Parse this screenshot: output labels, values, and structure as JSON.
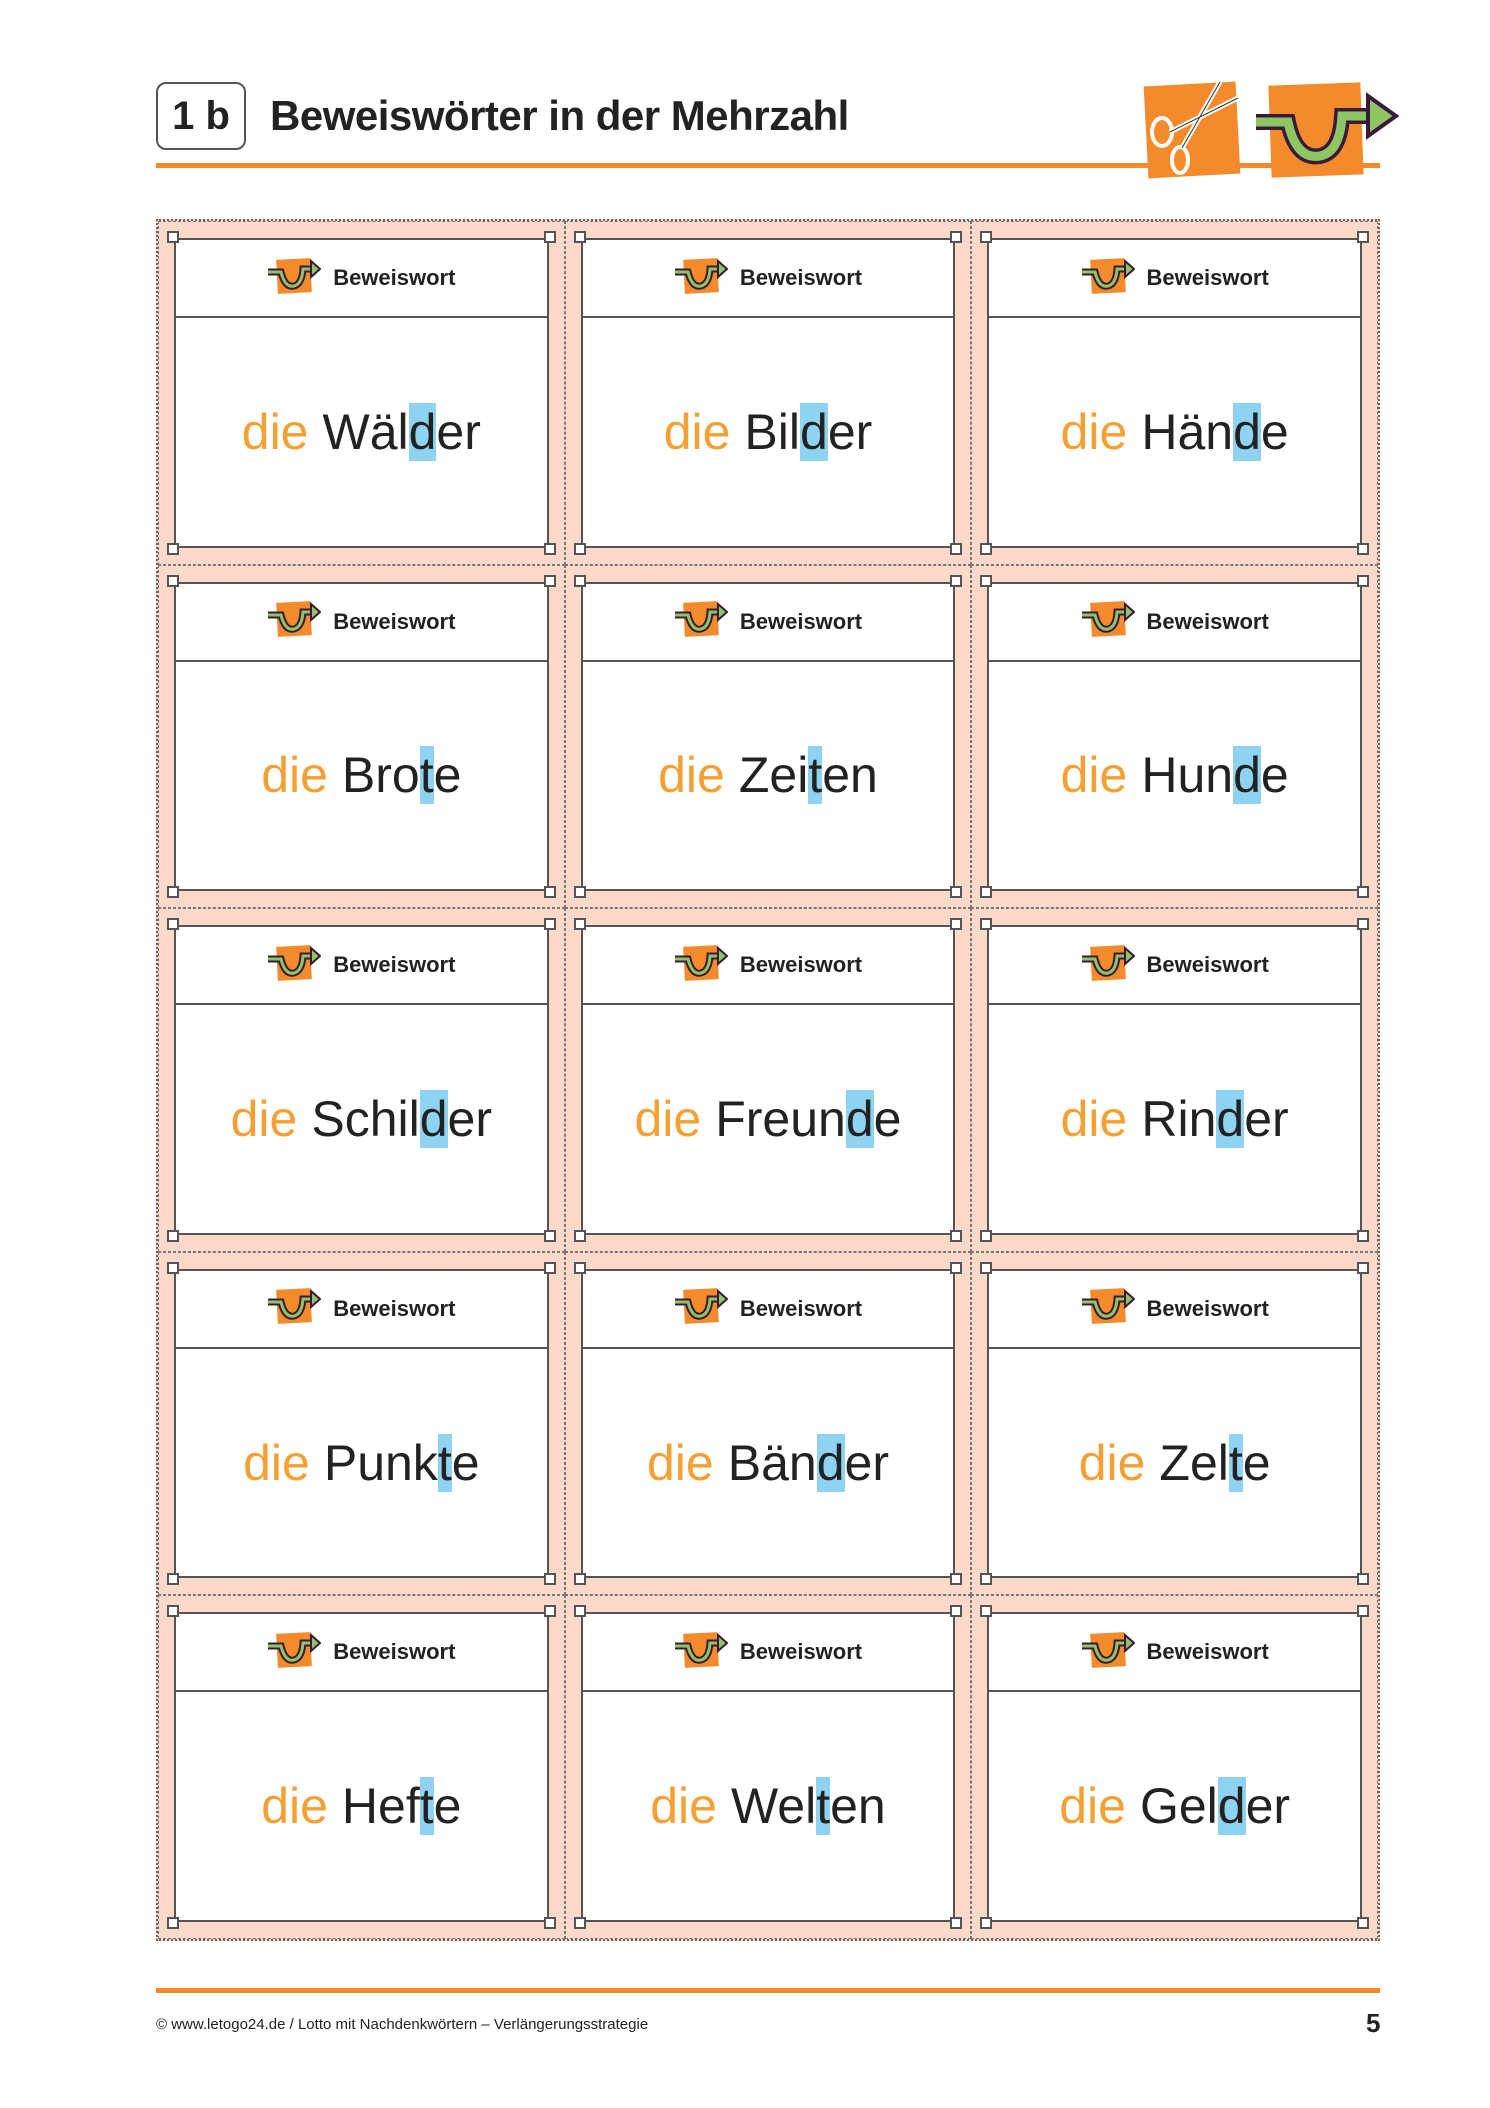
{
  "header": {
    "number": "1 b",
    "title": "Beweiswörter in der Mehrzahl",
    "icons": [
      "scissors-icon",
      "proof-word-arrow-icon"
    ]
  },
  "colors": {
    "accent": "#f38a2c",
    "article": "#f5a033",
    "highlight": "#8fd3f3",
    "card_bg": "#fdd9c9"
  },
  "card_label": "Beweiswort",
  "cards": [
    {
      "article": "die",
      "pre": "Wäl",
      "hl": "d",
      "post": "er"
    },
    {
      "article": "die",
      "pre": "Bil",
      "hl": "d",
      "post": "er"
    },
    {
      "article": "die",
      "pre": "Hän",
      "hl": "d",
      "post": "e"
    },
    {
      "article": "die",
      "pre": "Bro",
      "hl": "t",
      "post": "e"
    },
    {
      "article": "die",
      "pre": "Zei",
      "hl": "t",
      "post": "en"
    },
    {
      "article": "die",
      "pre": "Hun",
      "hl": "d",
      "post": "e"
    },
    {
      "article": "die",
      "pre": "Schil",
      "hl": "d",
      "post": "er"
    },
    {
      "article": "die",
      "pre": "Freun",
      "hl": "d",
      "post": "e"
    },
    {
      "article": "die",
      "pre": "Rin",
      "hl": "d",
      "post": "er"
    },
    {
      "article": "die",
      "pre": "Punk",
      "hl": "t",
      "post": "e"
    },
    {
      "article": "die",
      "pre": "Bän",
      "hl": "d",
      "post": "er"
    },
    {
      "article": "die",
      "pre": "Zel",
      "hl": "t",
      "post": "e"
    },
    {
      "article": "die",
      "pre": "Hef",
      "hl": "t",
      "post": "e"
    },
    {
      "article": "die",
      "pre": "Wel",
      "hl": "t",
      "post": "en"
    },
    {
      "article": "die",
      "pre": "Gel",
      "hl": "d",
      "post": "er"
    }
  ],
  "footer": {
    "text": "© www.letogo24.de / Lotto mit Nachdenkwörtern – Verlängerungsstrategie",
    "page": "5"
  }
}
